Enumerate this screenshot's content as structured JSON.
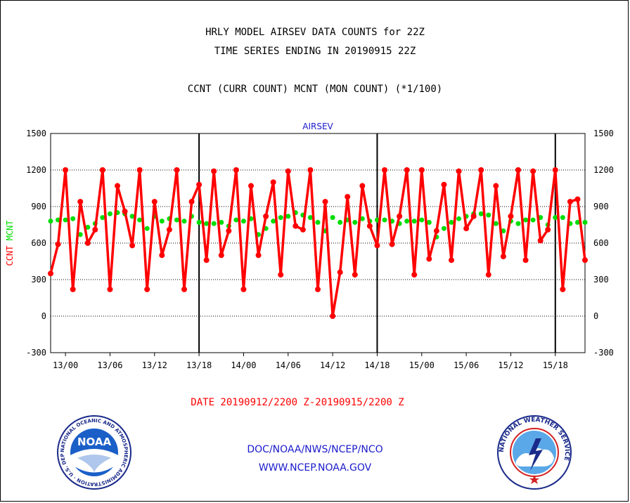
{
  "header": {
    "line1": "HRLY MODEL AIRSEV DATA COUNTS for 22Z",
    "line2": "TIME SERIES ENDING IN 20190915 22Z",
    "line3": "CCNT (CURR COUNT) MCNT (MON COUNT) (*1/100)"
  },
  "footer": {
    "date_range": "DATE 20190912/2200 Z-20190915/2200 Z",
    "org": "DOC/NOAA/NWS/NCEP/NCO",
    "url": "WWW.NCEP.NOAA.GOV"
  },
  "logos": {
    "noaa_label": "NOAA",
    "noaa_ring_text": "NATIONAL OCEANIC AND ATMOSPHERIC ADMINISTRATION · U.S. DEPARTMENT OF COMMERCE ·",
    "nws_ring_text": "NATIONAL WEATHER SERVICE"
  },
  "colors": {
    "ccnt": "#ff0000",
    "mcnt": "#00dd00",
    "plot_title": "#1a1acc"
  },
  "chart_data": {
    "type": "line",
    "title": "AIRSEV",
    "ylabel_left_parts": [
      "CCNT",
      "MCNT"
    ],
    "ylim": [
      -300,
      1500
    ],
    "yticks": [
      -300,
      0,
      300,
      600,
      900,
      1200,
      1500
    ],
    "grid": true,
    "x_start": "2019091222",
    "x_end": "2019091522",
    "x_step_hours": 1,
    "xtick_labels": [
      {
        "hour": 2,
        "label": "13/00"
      },
      {
        "hour": 8,
        "label": "13/06"
      },
      {
        "hour": 14,
        "label": "13/12"
      },
      {
        "hour": 20,
        "label": "13/18"
      },
      {
        "hour": 26,
        "label": "14/00"
      },
      {
        "hour": 32,
        "label": "14/06"
      },
      {
        "hour": 38,
        "label": "14/12"
      },
      {
        "hour": 44,
        "label": "14/18"
      },
      {
        "hour": 50,
        "label": "15/00"
      },
      {
        "hour": 56,
        "label": "15/06"
      },
      {
        "hour": 62,
        "label": "15/12"
      },
      {
        "hour": 68,
        "label": "15/18"
      }
    ],
    "day_boundaries": [
      20,
      44,
      68
    ],
    "series": [
      {
        "name": "CCNT",
        "values": [
          350,
          590,
          1200,
          220,
          940,
          600,
          710,
          1200,
          220,
          1070,
          860,
          580,
          1200,
          220,
          940,
          500,
          710,
          1200,
          220,
          940,
          1080,
          460,
          1190,
          500,
          700,
          1200,
          220,
          1070,
          500,
          820,
          1100,
          340,
          1190,
          740,
          710,
          1200,
          220,
          940,
          0,
          360,
          980,
          340,
          1070,
          740,
          580,
          1200,
          590,
          820,
          1200,
          340,
          1200,
          470,
          700,
          1080,
          460,
          1190,
          720,
          820,
          1200,
          340,
          1070,
          490,
          820,
          1200,
          460,
          1190,
          620,
          710,
          1200,
          220,
          940,
          960,
          460
        ]
      },
      {
        "name": "MCNT",
        "values": [
          780,
          790,
          790,
          800,
          670,
          730,
          760,
          810,
          840,
          850,
          840,
          820,
          790,
          720,
          820,
          780,
          800,
          790,
          780,
          820,
          770,
          760,
          760,
          770,
          740,
          790,
          780,
          800,
          670,
          720,
          780,
          810,
          820,
          850,
          830,
          810,
          770,
          700,
          810,
          770,
          790,
          770,
          800,
          780,
          790,
          790,
          780,
          760,
          780,
          780,
          790,
          770,
          650,
          720,
          770,
          800,
          820,
          840,
          840,
          830,
          760,
          700,
          780,
          760,
          790,
          790,
          810,
          750,
          810,
          810,
          760,
          770,
          770
        ]
      }
    ]
  }
}
